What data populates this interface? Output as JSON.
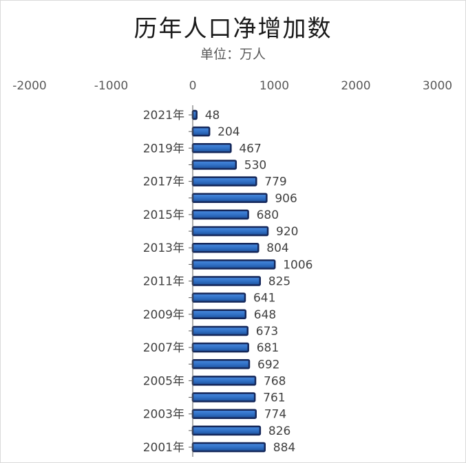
{
  "chart_data": {
    "type": "bar",
    "orientation": "horizontal",
    "title": "历年人口净增加数",
    "subtitle": "单位：万人",
    "categories": [
      "2021年",
      "",
      "2019年",
      "",
      "2017年",
      "",
      "2015年",
      "",
      "2013年",
      "",
      "2011年",
      "",
      "2009年",
      "",
      "2007年",
      "",
      "2005年",
      "",
      "2003年",
      "",
      "2001年"
    ],
    "values": [
      48,
      204,
      467,
      530,
      779,
      906,
      680,
      920,
      804,
      1006,
      825,
      641,
      648,
      673,
      681,
      692,
      768,
      761,
      774,
      826,
      884
    ],
    "xlim": [
      -2000,
      3000
    ],
    "xticks": [
      "-2000",
      "-1000",
      "0",
      "1000",
      "2000",
      "3000"
    ],
    "axis_position": "top",
    "grid": false,
    "legend": "none",
    "colors": {
      "bar_fill": "#2f6fc4",
      "bar_edge": "#14275a",
      "axis": "#595959"
    }
  }
}
